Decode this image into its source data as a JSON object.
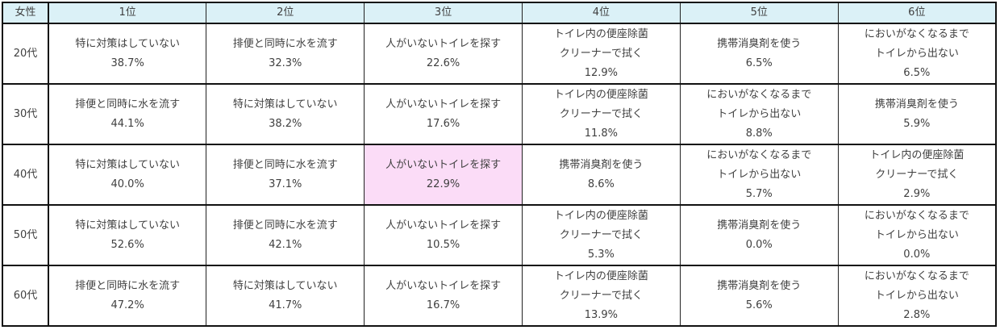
{
  "table": {
    "corner_label": "女性",
    "rank_headers": [
      "1位",
      "2位",
      "3位",
      "4位",
      "5位",
      "6位"
    ],
    "highlight_color": "#fbdcf7",
    "header_color": "#dbf1f7",
    "rows": [
      {
        "age": "20代",
        "cells": [
          {
            "lines": [
              "特に対策はしていない"
            ],
            "pct": "38.7%"
          },
          {
            "lines": [
              "排便と同時に水を流す"
            ],
            "pct": "32.3%"
          },
          {
            "lines": [
              "人がいないトイレを探す"
            ],
            "pct": "22.6%"
          },
          {
            "lines": [
              "トイレ内の便座除菌",
              "クリーナーで拭く"
            ],
            "pct": "12.9%"
          },
          {
            "lines": [
              "携帯消臭剤を使う"
            ],
            "pct": "6.5%"
          },
          {
            "lines": [
              "においがなくなるまで",
              "トイレから出ない"
            ],
            "pct": "6.5%"
          }
        ]
      },
      {
        "age": "30代",
        "cells": [
          {
            "lines": [
              "排便と同時に水を流す"
            ],
            "pct": "44.1%"
          },
          {
            "lines": [
              "特に対策はしていない"
            ],
            "pct": "38.2%"
          },
          {
            "lines": [
              "人がいないトイレを探す"
            ],
            "pct": "17.6%"
          },
          {
            "lines": [
              "トイレ内の便座除菌",
              "クリーナーで拭く"
            ],
            "pct": "11.8%"
          },
          {
            "lines": [
              "においがなくなるまで",
              "トイレから出ない"
            ],
            "pct": "8.8%"
          },
          {
            "lines": [
              "携帯消臭剤を使う"
            ],
            "pct": "5.9%"
          }
        ]
      },
      {
        "age": "40代",
        "cells": [
          {
            "lines": [
              "特に対策はしていない"
            ],
            "pct": "40.0%"
          },
          {
            "lines": [
              "排便と同時に水を流す"
            ],
            "pct": "37.1%"
          },
          {
            "lines": [
              "人がいないトイレを探す"
            ],
            "pct": "22.9%",
            "highlight": true
          },
          {
            "lines": [
              "携帯消臭剤を使う"
            ],
            "pct": "8.6%"
          },
          {
            "lines": [
              "においがなくなるまで",
              "トイレから出ない"
            ],
            "pct": "5.7%"
          },
          {
            "lines": [
              "トイレ内の便座除菌",
              "クリーナーで拭く"
            ],
            "pct": "2.9%"
          }
        ]
      },
      {
        "age": "50代",
        "cells": [
          {
            "lines": [
              "特に対策はしていない"
            ],
            "pct": "52.6%"
          },
          {
            "lines": [
              "排便と同時に水を流す"
            ],
            "pct": "42.1%"
          },
          {
            "lines": [
              "人がいないトイレを探す"
            ],
            "pct": "10.5%"
          },
          {
            "lines": [
              "トイレ内の便座除菌",
              "クリーナーで拭く"
            ],
            "pct": "5.3%"
          },
          {
            "lines": [
              "携帯消臭剤を使う"
            ],
            "pct": "0.0%"
          },
          {
            "lines": [
              "においがなくなるまで",
              "トイレから出ない"
            ],
            "pct": "0.0%"
          }
        ]
      },
      {
        "age": "60代",
        "cells": [
          {
            "lines": [
              "排便と同時に水を流す"
            ],
            "pct": "47.2%"
          },
          {
            "lines": [
              "特に対策はしていない"
            ],
            "pct": "41.7%"
          },
          {
            "lines": [
              "人がいないトイレを探す"
            ],
            "pct": "16.7%"
          },
          {
            "lines": [
              "トイレ内の便座除菌",
              "クリーナーで拭く"
            ],
            "pct": "13.9%"
          },
          {
            "lines": [
              "携帯消臭剤を使う"
            ],
            "pct": "5.6%"
          },
          {
            "lines": [
              "においがなくなるまで",
              "トイレから出ない"
            ],
            "pct": "2.8%"
          }
        ]
      }
    ]
  }
}
